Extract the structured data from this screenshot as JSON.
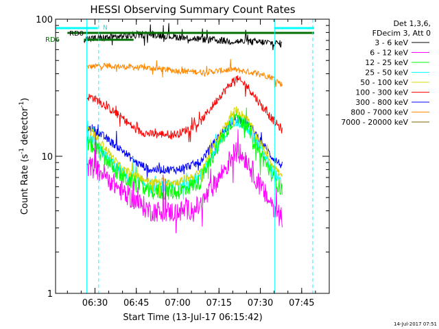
{
  "chart_data": {
    "type": "line",
    "title": "HESSI Observing Summary Count Rates",
    "xlabel": "Start Time (13-Jul-17 06:15:42)",
    "ylabel": "Count Rate (s",
    "ylabel_sup1": "-1",
    "ylabel_mid": " detector",
    "ylabel_sup2": "-1",
    "ylabel_end": ")",
    "y_scale": "log",
    "ylim": [
      1,
      100
    ],
    "xlim": [
      "06:15:42",
      "07:55:00"
    ],
    "x_ticks": [
      "06:30",
      "06:45",
      "07:00",
      "07:15",
      "07:30",
      "07:45"
    ],
    "y_ticks": [
      "1",
      "10",
      "100"
    ],
    "footer_date": "14-Jul-2017 07:51",
    "legend": {
      "position": "right",
      "header": [
        "Det 1,3,6,",
        "FDecim 3, Att 0"
      ],
      "entries": [
        {
          "label": "3 - 6 keV",
          "color": "#000000"
        },
        {
          "label": "6 - 12 keV",
          "color": "#ff00ff"
        },
        {
          "label": "12 - 25 keV",
          "color": "#00ff00"
        },
        {
          "label": "25 - 50 keV",
          "color": "#00ffff"
        },
        {
          "label": "50 - 100 keV",
          "color": "#d8d800"
        },
        {
          "label": "100 - 300 keV",
          "color": "#ff0000"
        },
        {
          "label": "300 - 800 keV",
          "color": "#0000ff"
        },
        {
          "label": "800 - 7000 keV",
          "color": "#ff8800"
        },
        {
          "label": "7000 - 20000 keV",
          "color": "#806000"
        }
      ]
    },
    "annotations": {
      "rd0": "RD0",
      "rd6": "RD6",
      "n": "N"
    },
    "intervals": {
      "n_bars": [
        [
          "06:15:42",
          "06:31:00"
        ],
        [
          "07:35:00",
          "07:49:30"
        ]
      ],
      "rd0": [
        "06:20:00",
        "07:49:30"
      ],
      "rd6": [
        "06:26:00",
        "06:44:00"
      ]
    },
    "vlines_solid": [
      "06:27:00",
      "07:35:10"
    ],
    "vlines_dashed": [
      "06:31:20",
      "07:49:00"
    ],
    "series": [
      {
        "name": "3 - 6 keV",
        "color": "#000000",
        "t": [
          "06:26",
          "06:29",
          "06:33",
          "06:40",
          "06:50",
          "07:00",
          "07:10",
          "07:20",
          "07:30",
          "07:35",
          "07:38"
        ],
        "v": [
          72,
          72,
          73,
          75,
          78,
          74,
          71,
          69,
          68,
          67,
          66
        ],
        "noise": 0.06
      },
      {
        "name": "6 - 12 keV",
        "color": "#ff00ff",
        "t": [
          "06:27",
          "06:29",
          "06:33",
          "06:40",
          "06:50",
          "07:00",
          "07:08",
          "07:15",
          "07:21",
          "07:25",
          "07:30",
          "07:34",
          "07:38"
        ],
        "v": [
          8.5,
          8.3,
          7.5,
          5.5,
          4.0,
          3.9,
          4.3,
          7.0,
          11.0,
          9.5,
          6.0,
          4.5,
          3.6
        ],
        "noise": 0.18
      },
      {
        "name": "12 - 25 keV",
        "color": "#00ff00",
        "t": [
          "06:27",
          "06:29",
          "06:33",
          "06:40",
          "06:50",
          "07:00",
          "07:08",
          "07:15",
          "07:21",
          "07:25",
          "07:30",
          "07:34",
          "07:38"
        ],
        "v": [
          12.5,
          12.0,
          10.0,
          7.0,
          5.5,
          5.5,
          6.5,
          12.5,
          20.0,
          17.0,
          10.5,
          7.5,
          5.5
        ],
        "noise": 0.14
      },
      {
        "name": "25 - 50 keV",
        "color": "#00ffff",
        "t": [
          "06:27",
          "06:29",
          "06:33",
          "06:40",
          "06:50",
          "07:00",
          "07:08",
          "07:15",
          "07:21",
          "07:25",
          "07:30",
          "07:34",
          "07:38"
        ],
        "v": [
          13.5,
          13.0,
          10.5,
          7.5,
          6.0,
          6.0,
          7.0,
          12.5,
          19.0,
          16.5,
          11.5,
          8.0,
          6.0
        ],
        "noise": 0.12
      },
      {
        "name": "50 - 100 keV",
        "color": "#d8d800",
        "t": [
          "06:27",
          "06:29",
          "06:33",
          "06:40",
          "06:50",
          "07:00",
          "07:08",
          "07:15",
          "07:21",
          "07:25",
          "07:30",
          "07:34",
          "07:38"
        ],
        "v": [
          15.5,
          15.0,
          12.0,
          8.0,
          6.5,
          6.5,
          7.5,
          14.0,
          22.0,
          19.0,
          12.5,
          9.0,
          7.0
        ],
        "noise": 0.07
      },
      {
        "name": "100 - 300 keV",
        "color": "#ff0000",
        "t": [
          "06:27",
          "06:29",
          "06:33",
          "06:40",
          "06:45",
          "06:50",
          "07:00",
          "07:08",
          "07:15",
          "07:21",
          "07:25",
          "07:30",
          "07:34",
          "07:38"
        ],
        "v": [
          27,
          27,
          24,
          19,
          15.5,
          14.5,
          14.5,
          17.5,
          27,
          37,
          33,
          24,
          19,
          15.5
        ],
        "noise": 0.07
      },
      {
        "name": "300 - 800 keV",
        "color": "#0000ff",
        "t": [
          "06:27",
          "06:29",
          "06:33",
          "06:40",
          "06:45",
          "06:50",
          "07:00",
          "07:08",
          "07:15",
          "07:21",
          "07:25",
          "07:30",
          "07:34",
          "07:38"
        ],
        "v": [
          16,
          16,
          14,
          11,
          9.0,
          8.0,
          8.0,
          9.0,
          14,
          19,
          18,
          13,
          10,
          8.5
        ],
        "noise": 0.07
      },
      {
        "name": "800 - 7000 keV",
        "color": "#ff8800",
        "t": [
          "06:27",
          "06:29",
          "06:33",
          "06:40",
          "06:50",
          "07:00",
          "07:10",
          "07:20",
          "07:30",
          "07:35",
          "07:38"
        ],
        "v": [
          45,
          45,
          46,
          45,
          44,
          42,
          41,
          43,
          40,
          37,
          33
        ],
        "noise": 0.05
      },
      {
        "name": "7000 - 20000 keV",
        "color": "#806000",
        "t": [],
        "v": [],
        "noise": 0
      }
    ]
  }
}
